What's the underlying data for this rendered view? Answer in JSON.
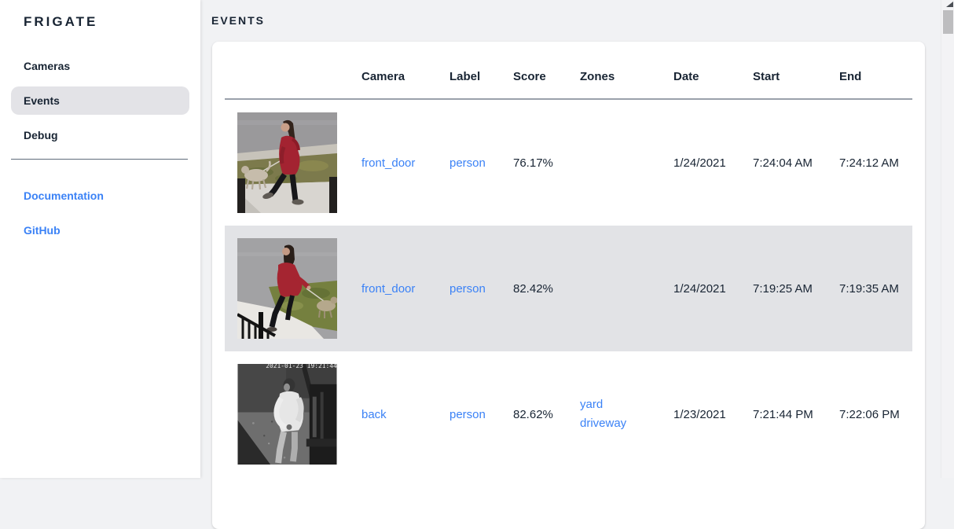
{
  "app": {
    "name": "FRIGATE"
  },
  "sidebar": {
    "items": [
      {
        "label": "Cameras",
        "active": false
      },
      {
        "label": "Events",
        "active": true
      },
      {
        "label": "Debug",
        "active": false
      }
    ],
    "links": [
      {
        "label": "Documentation"
      },
      {
        "label": "GitHub"
      }
    ]
  },
  "page": {
    "title": "EVENTS"
  },
  "table": {
    "columns": [
      "Camera",
      "Label",
      "Score",
      "Zones",
      "Date",
      "Start",
      "End"
    ],
    "rows": [
      {
        "thumbnail": "person-walking-dog-day",
        "thumbnail_alt": "person in red coat walking dog on sidewalk",
        "camera": "front_door",
        "label": "person",
        "score": "76.17%",
        "zones": [],
        "date": "1/24/2021",
        "start": "7:24:04 AM",
        "end": "7:24:12 AM",
        "highlighted": false
      },
      {
        "thumbnail": "person-walking-dog-day-2",
        "thumbnail_alt": "person in red hoodie walking dog past railing",
        "camera": "front_door",
        "label": "person",
        "score": "82.42%",
        "zones": [],
        "date": "1/24/2021",
        "start": "7:19:25 AM",
        "end": "7:19:35 AM",
        "highlighted": true
      },
      {
        "thumbnail": "person-night-bw",
        "thumbnail_alt": "infrared night view of person in white shirt",
        "thumbnail_timestamp": "2021-01-23 19:21:44",
        "camera": "back",
        "label": "person",
        "score": "82.62%",
        "zones": [
          "yard",
          "driveway"
        ],
        "date": "1/23/2021",
        "start": "7:21:44 PM",
        "end": "7:22:06 PM",
        "highlighted": false
      }
    ]
  },
  "colors": {
    "link_blue": "#3b82f6",
    "text_dark": "#182433",
    "row_highlight": "#e2e3e6",
    "page_background": "#f1f2f4",
    "active_nav_pill": "#e3e3e7"
  }
}
